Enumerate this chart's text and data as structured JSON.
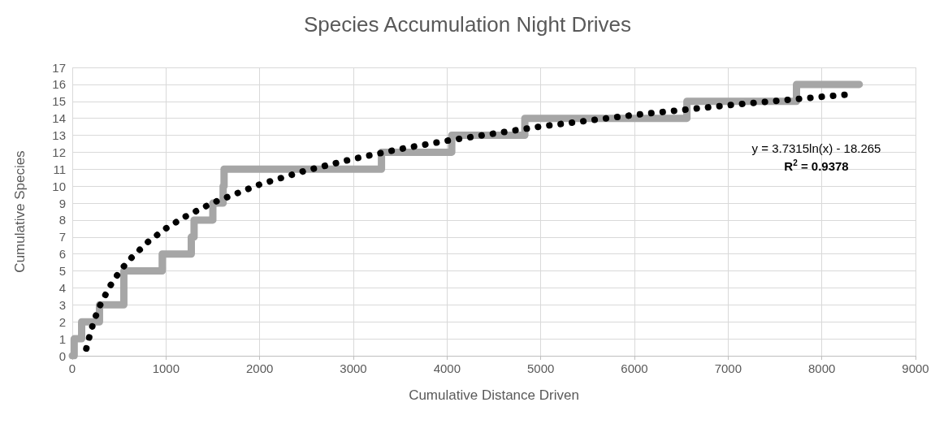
{
  "chart_data": {
    "type": "step",
    "title": "Species Accumulation Night Drives",
    "xlabel": "Cumulative Distance Driven",
    "ylabel": "Cumulative Species",
    "series": [
      {
        "color": "#a6a6a6",
        "x": [
          0,
          20,
          100,
          290,
          550,
          960,
          1270,
          1300,
          1500,
          1610,
          1620,
          3300,
          4050,
          4830,
          6560,
          7730,
          8400
        ],
        "values": [
          0,
          1,
          2,
          3,
          5,
          6,
          7,
          8,
          9,
          10,
          11,
          12,
          13,
          14,
          15,
          16,
          16
        ]
      },
      {
        "type": "line",
        "color": "#000000",
        "line_style": "dotted",
        "x": [
          150,
          200,
          250,
          300,
          400,
          500,
          600,
          800,
          1000,
          1200,
          1500,
          2000,
          2500,
          3000,
          3500,
          4000,
          5000,
          6000,
          7000,
          8000,
          8250
        ],
        "values": [
          0.43,
          1.51,
          2.34,
          3.02,
          4.09,
          4.93,
          5.61,
          6.68,
          7.51,
          8.19,
          9.02,
          10.1,
          10.93,
          11.61,
          12.19,
          12.68,
          13.52,
          14.2,
          14.77,
          15.27,
          15.39
        ]
      }
    ],
    "xlim": [
      0,
      9000
    ],
    "xticks": [
      0,
      1000,
      2000,
      3000,
      4000,
      5000,
      6000,
      7000,
      8000,
      9000
    ],
    "ylim": [
      0,
      17
    ],
    "yticks": [
      0,
      1,
      2,
      3,
      4,
      5,
      6,
      7,
      8,
      9,
      10,
      11,
      12,
      13,
      14,
      15,
      16,
      17
    ],
    "grid": true,
    "marker": "none",
    "annotations": [
      "y = 3.7315ln(x) - 18.265",
      "R$^{2}$ = 0.9378"
    ]
  }
}
